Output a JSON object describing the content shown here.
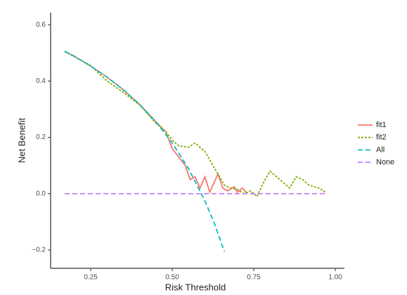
{
  "chart_data": {
    "type": "line",
    "xlabel": "Risk Threshold",
    "ylabel": "Net Benefit",
    "xlim": [
      0.127,
      1.028
    ],
    "ylim": [
      -0.265,
      0.643
    ],
    "xticks": [
      0.25,
      {
        "value": 0.5,
        "label": "0.50"
      },
      0.75,
      {
        "value": 1,
        "label": "1.00"
      }
    ],
    "yticks": [
      {
        "value": -0.2,
        "label": "−0.2"
      },
      {
        "value": 0,
        "label": "0.0"
      },
      0.2,
      0.4,
      0.6
    ],
    "legend": "right",
    "series": [
      {
        "name": "fit1",
        "color": "#F8766D",
        "linetype": "solid",
        "x": [
          0.17,
          0.2,
          0.25,
          0.3,
          0.35,
          0.4,
          0.45,
          0.48,
          0.5,
          0.52,
          0.54,
          0.555,
          0.57,
          0.585,
          0.6,
          0.615,
          0.64,
          0.655,
          0.67,
          0.69,
          0.7,
          0.715,
          0.73
        ],
        "values": [
          0.506,
          0.488,
          0.453,
          0.414,
          0.369,
          0.317,
          0.255,
          0.22,
          0.16,
          0.13,
          0.1,
          0.05,
          0.06,
          0.02,
          0.06,
          0.005,
          0.07,
          0.02,
          0.01,
          0.025,
          0.005,
          0.02,
          0.0
        ]
      },
      {
        "name": "fit2",
        "color": "#7CAE00",
        "linetype": "dotted",
        "x": [
          0.17,
          0.25,
          0.3,
          0.35,
          0.4,
          0.45,
          0.48,
          0.5,
          0.52,
          0.55,
          0.57,
          0.6,
          0.62,
          0.64,
          0.66,
          0.68,
          0.7,
          0.72,
          0.74,
          0.76,
          0.78,
          0.8,
          0.82,
          0.84,
          0.86,
          0.88,
          0.9,
          0.92,
          0.95,
          0.97
        ],
        "values": [
          0.505,
          0.455,
          0.4,
          0.36,
          0.315,
          0.25,
          0.22,
          0.19,
          0.17,
          0.165,
          0.18,
          0.15,
          0.11,
          0.07,
          0.03,
          0.02,
          0.015,
          0.0,
          0.01,
          -0.01,
          0.04,
          0.08,
          0.06,
          0.04,
          0.02,
          0.06,
          0.05,
          0.03,
          0.02,
          0.005
        ]
      },
      {
        "name": "All",
        "color": "#00BFC4",
        "linetype": "dashed",
        "x": [
          0.17,
          0.2,
          0.25,
          0.3,
          0.35,
          0.4,
          0.45,
          0.5,
          0.55,
          0.6,
          0.63,
          0.66
        ],
        "values": [
          0.506,
          0.488,
          0.453,
          0.414,
          0.369,
          0.317,
          0.255,
          0.18,
          0.089,
          -0.025,
          -0.108,
          -0.206
        ]
      },
      {
        "name": "None",
        "color": "#C77CFF",
        "linetype": "dashed",
        "x": [
          0.17,
          0.97
        ],
        "values": [
          0,
          0
        ]
      }
    ]
  }
}
